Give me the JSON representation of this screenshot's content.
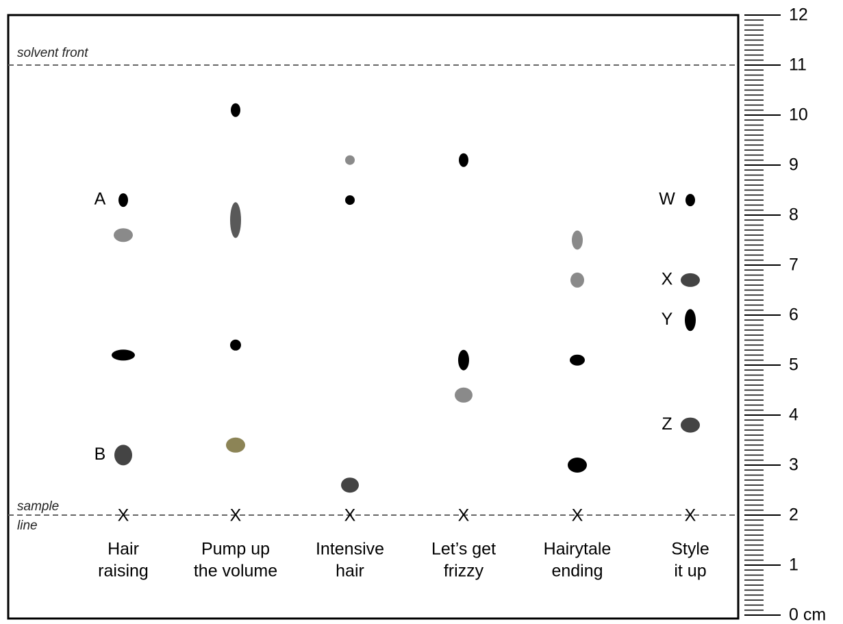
{
  "ruler": {
    "range": [
      0,
      12
    ],
    "ticks": [
      {
        "value": 0,
        "label": "0 cm"
      },
      1,
      2,
      3,
      4,
      5,
      6,
      7,
      8,
      9,
      10,
      11,
      12
    ]
  },
  "solvent_front": {
    "label": "solvent front",
    "height": 11
  },
  "sample_line": {
    "label": [
      "sample",
      "line"
    ],
    "height": 2
  },
  "lanes": [
    {
      "name": [
        "Hair",
        "raising"
      ],
      "origin_mark": "X",
      "spots": [
        {
          "height": 8.3,
          "color": "#000000",
          "label": "A"
        },
        {
          "height": 7.6,
          "color": "#8a8a8a"
        },
        {
          "height": 5.2,
          "color": "#000000"
        },
        {
          "height": 3.2,
          "color": "#444444",
          "label": "B"
        }
      ]
    },
    {
      "name": [
        "Pump up",
        "the volume"
      ],
      "origin_mark": "X",
      "spots": [
        {
          "height": 10.1,
          "color": "#000000"
        },
        {
          "height": 7.9,
          "color": "#595959"
        },
        {
          "height": 5.4,
          "color": "#000000"
        },
        {
          "height": 3.4,
          "color": "#8c8456"
        }
      ]
    },
    {
      "name": [
        "Intensive",
        "hair"
      ],
      "origin_mark": "X",
      "spots": [
        {
          "height": 9.1,
          "color": "#8a8a8a"
        },
        {
          "height": 8.3,
          "color": "#000000"
        },
        {
          "height": 2.6,
          "color": "#444444"
        }
      ]
    },
    {
      "name": [
        "Let’s get",
        "frizzy"
      ],
      "origin_mark": "X",
      "spots": [
        {
          "height": 9.1,
          "color": "#000000"
        },
        {
          "height": 5.1,
          "color": "#000000"
        },
        {
          "height": 4.4,
          "color": "#8a8a8a"
        }
      ]
    },
    {
      "name": [
        "Hairytale",
        "ending"
      ],
      "origin_mark": "X",
      "spots": [
        {
          "height": 7.5,
          "color": "#8a8a8a"
        },
        {
          "height": 6.7,
          "color": "#8a8a8a"
        },
        {
          "height": 5.1,
          "color": "#000000"
        },
        {
          "height": 3.0,
          "color": "#000000"
        }
      ]
    },
    {
      "name": [
        "Style",
        "it up"
      ],
      "origin_mark": "X",
      "spots": [
        {
          "height": 8.3,
          "color": "#000000",
          "label": "W"
        },
        {
          "height": 6.7,
          "color": "#444444",
          "label": "X"
        },
        {
          "height": 5.9,
          "color": "#000000",
          "label": "Y"
        },
        {
          "height": 3.8,
          "color": "#444444",
          "label": "Z"
        }
      ]
    }
  ]
}
